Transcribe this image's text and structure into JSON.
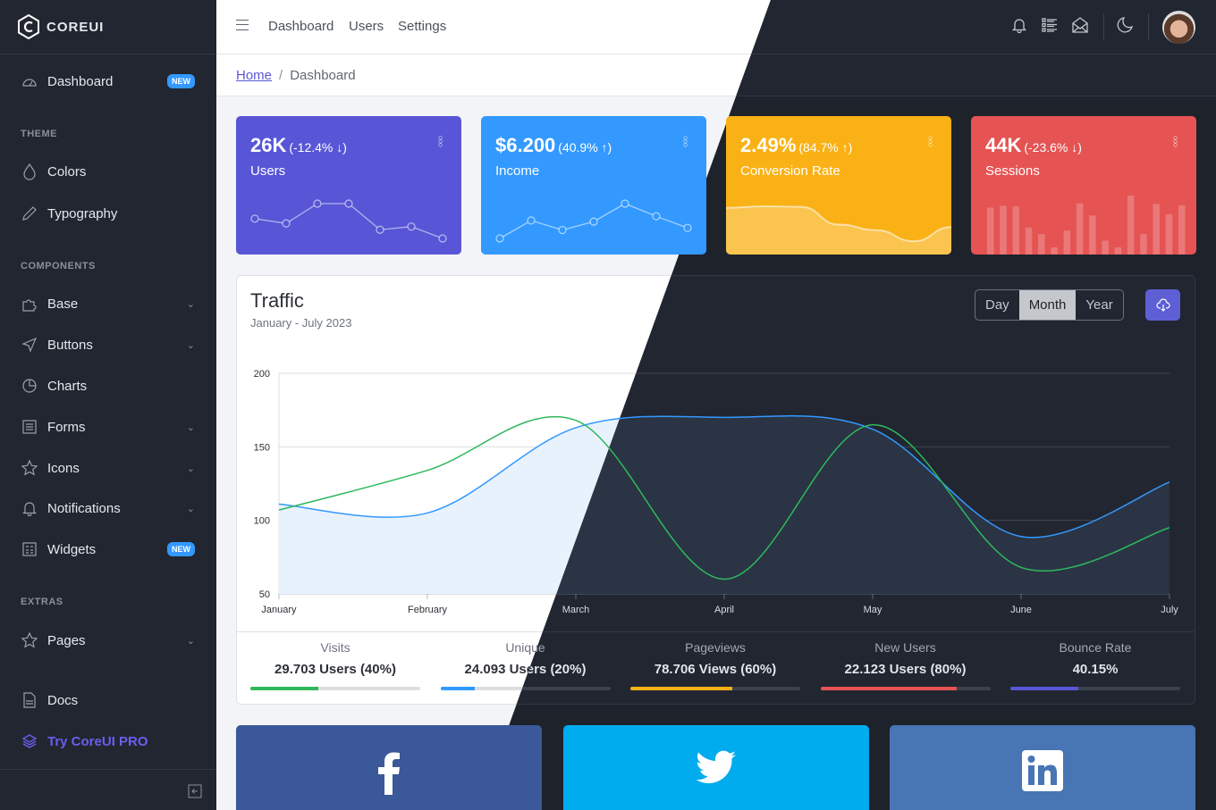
{
  "brand": "COREUI",
  "sidebar": {
    "items": [
      {
        "label": "Dashboard",
        "icon": "speedometer-icon",
        "badge": "NEW"
      },
      {
        "section": "THEME"
      },
      {
        "label": "Colors",
        "icon": "drop-icon"
      },
      {
        "label": "Typography",
        "icon": "pencil-icon"
      },
      {
        "section": "COMPONENTS"
      },
      {
        "label": "Base",
        "icon": "puzzle-icon",
        "chevron": true
      },
      {
        "label": "Buttons",
        "icon": "cursor-icon",
        "chevron": true
      },
      {
        "label": "Charts",
        "icon": "chart-pie-icon"
      },
      {
        "label": "Forms",
        "icon": "notes-icon",
        "chevron": true
      },
      {
        "label": "Icons",
        "icon": "star-icon",
        "chevron": true
      },
      {
        "label": "Notifications",
        "icon": "bell-icon",
        "chevron": true
      },
      {
        "label": "Widgets",
        "icon": "calculator-icon",
        "badge": "NEW"
      },
      {
        "section": "EXTRAS"
      },
      {
        "label": "Pages",
        "icon": "star-icon",
        "chevron": true
      },
      {
        "label": "Docs",
        "icon": "description-icon"
      },
      {
        "label": "Try CoreUI PRO",
        "icon": "layers-icon",
        "pro": true
      }
    ]
  },
  "header": {
    "nav": [
      "Dashboard",
      "Users",
      "Settings"
    ],
    "icons": [
      "bell-icon",
      "list-icon",
      "envelope-open-icon",
      "moon-icon"
    ]
  },
  "breadcrumb": {
    "home": "Home",
    "current": "Dashboard"
  },
  "widgets": [
    {
      "value": "26K",
      "change": "(-12.4% ↓)",
      "label": "Users",
      "color": "#5856d6",
      "type": "line",
      "data": [
        65,
        59,
        84,
        84,
        51,
        55,
        40
      ]
    },
    {
      "value": "$6.200",
      "change": "(40.9% ↑)",
      "label": "Income",
      "color": "#3399ff",
      "type": "line",
      "data": [
        1,
        18,
        9,
        17,
        34,
        22,
        11
      ]
    },
    {
      "value": "2.49%",
      "change": "(84.7% ↑)",
      "label": "Conversion Rate",
      "color": "#f9b115",
      "type": "area",
      "data": [
        78,
        81,
        80,
        45,
        34,
        12,
        40
      ]
    },
    {
      "value": "44K",
      "change": "(-23.6% ↓)",
      "label": "Sessions",
      "color": "#e55353",
      "type": "bar",
      "data": [
        78,
        81,
        80,
        45,
        34,
        12,
        40,
        85,
        65,
        23,
        12,
        98,
        34,
        84,
        67,
        82
      ]
    }
  ],
  "traffic": {
    "title": "Traffic",
    "subtitle": "January - July 2023",
    "periods": [
      "Day",
      "Month",
      "Year"
    ],
    "active_period": "Month",
    "download_icon": "cloud-download-icon"
  },
  "chart_data": {
    "type": "line",
    "categories": [
      "January",
      "February",
      "March",
      "April",
      "May",
      "June",
      "July"
    ],
    "ylim": [
      50,
      200
    ],
    "yticks": [
      50,
      100,
      150,
      200
    ],
    "grid": true,
    "series": [
      {
        "values": [
          111,
          105,
          163,
          170,
          162,
          89,
          126
        ],
        "color": "#3399ff",
        "fill": true
      },
      {
        "values": [
          107,
          134,
          168,
          60,
          165,
          68,
          95
        ],
        "color": "#2eb85c",
        "fill": false
      }
    ]
  },
  "stats": [
    {
      "label": "Visits",
      "value": "29.703 Users (40%)",
      "percent": 40,
      "color": "#2eb85c"
    },
    {
      "label": "Unique",
      "value": "24.093 Users (20%)",
      "percent": 20,
      "color": "#3399ff"
    },
    {
      "label": "Pageviews",
      "value": "78.706 Views (60%)",
      "percent": 60,
      "color": "#f9b115"
    },
    {
      "label": "New Users",
      "value": "22.123 Users (80%)",
      "percent": 80,
      "color": "#e55353"
    },
    {
      "label": "Bounce Rate",
      "value": "40.15%",
      "percent": 40,
      "color": "#5856d6"
    }
  ],
  "social": [
    {
      "name": "facebook",
      "color": "#3b5998",
      "icon": "facebook-icon"
    },
    {
      "name": "twitter",
      "color": "#00aced",
      "icon": "twitter-icon"
    },
    {
      "name": "linkedin",
      "color": "#4875b4",
      "icon": "linkedin-icon"
    }
  ]
}
